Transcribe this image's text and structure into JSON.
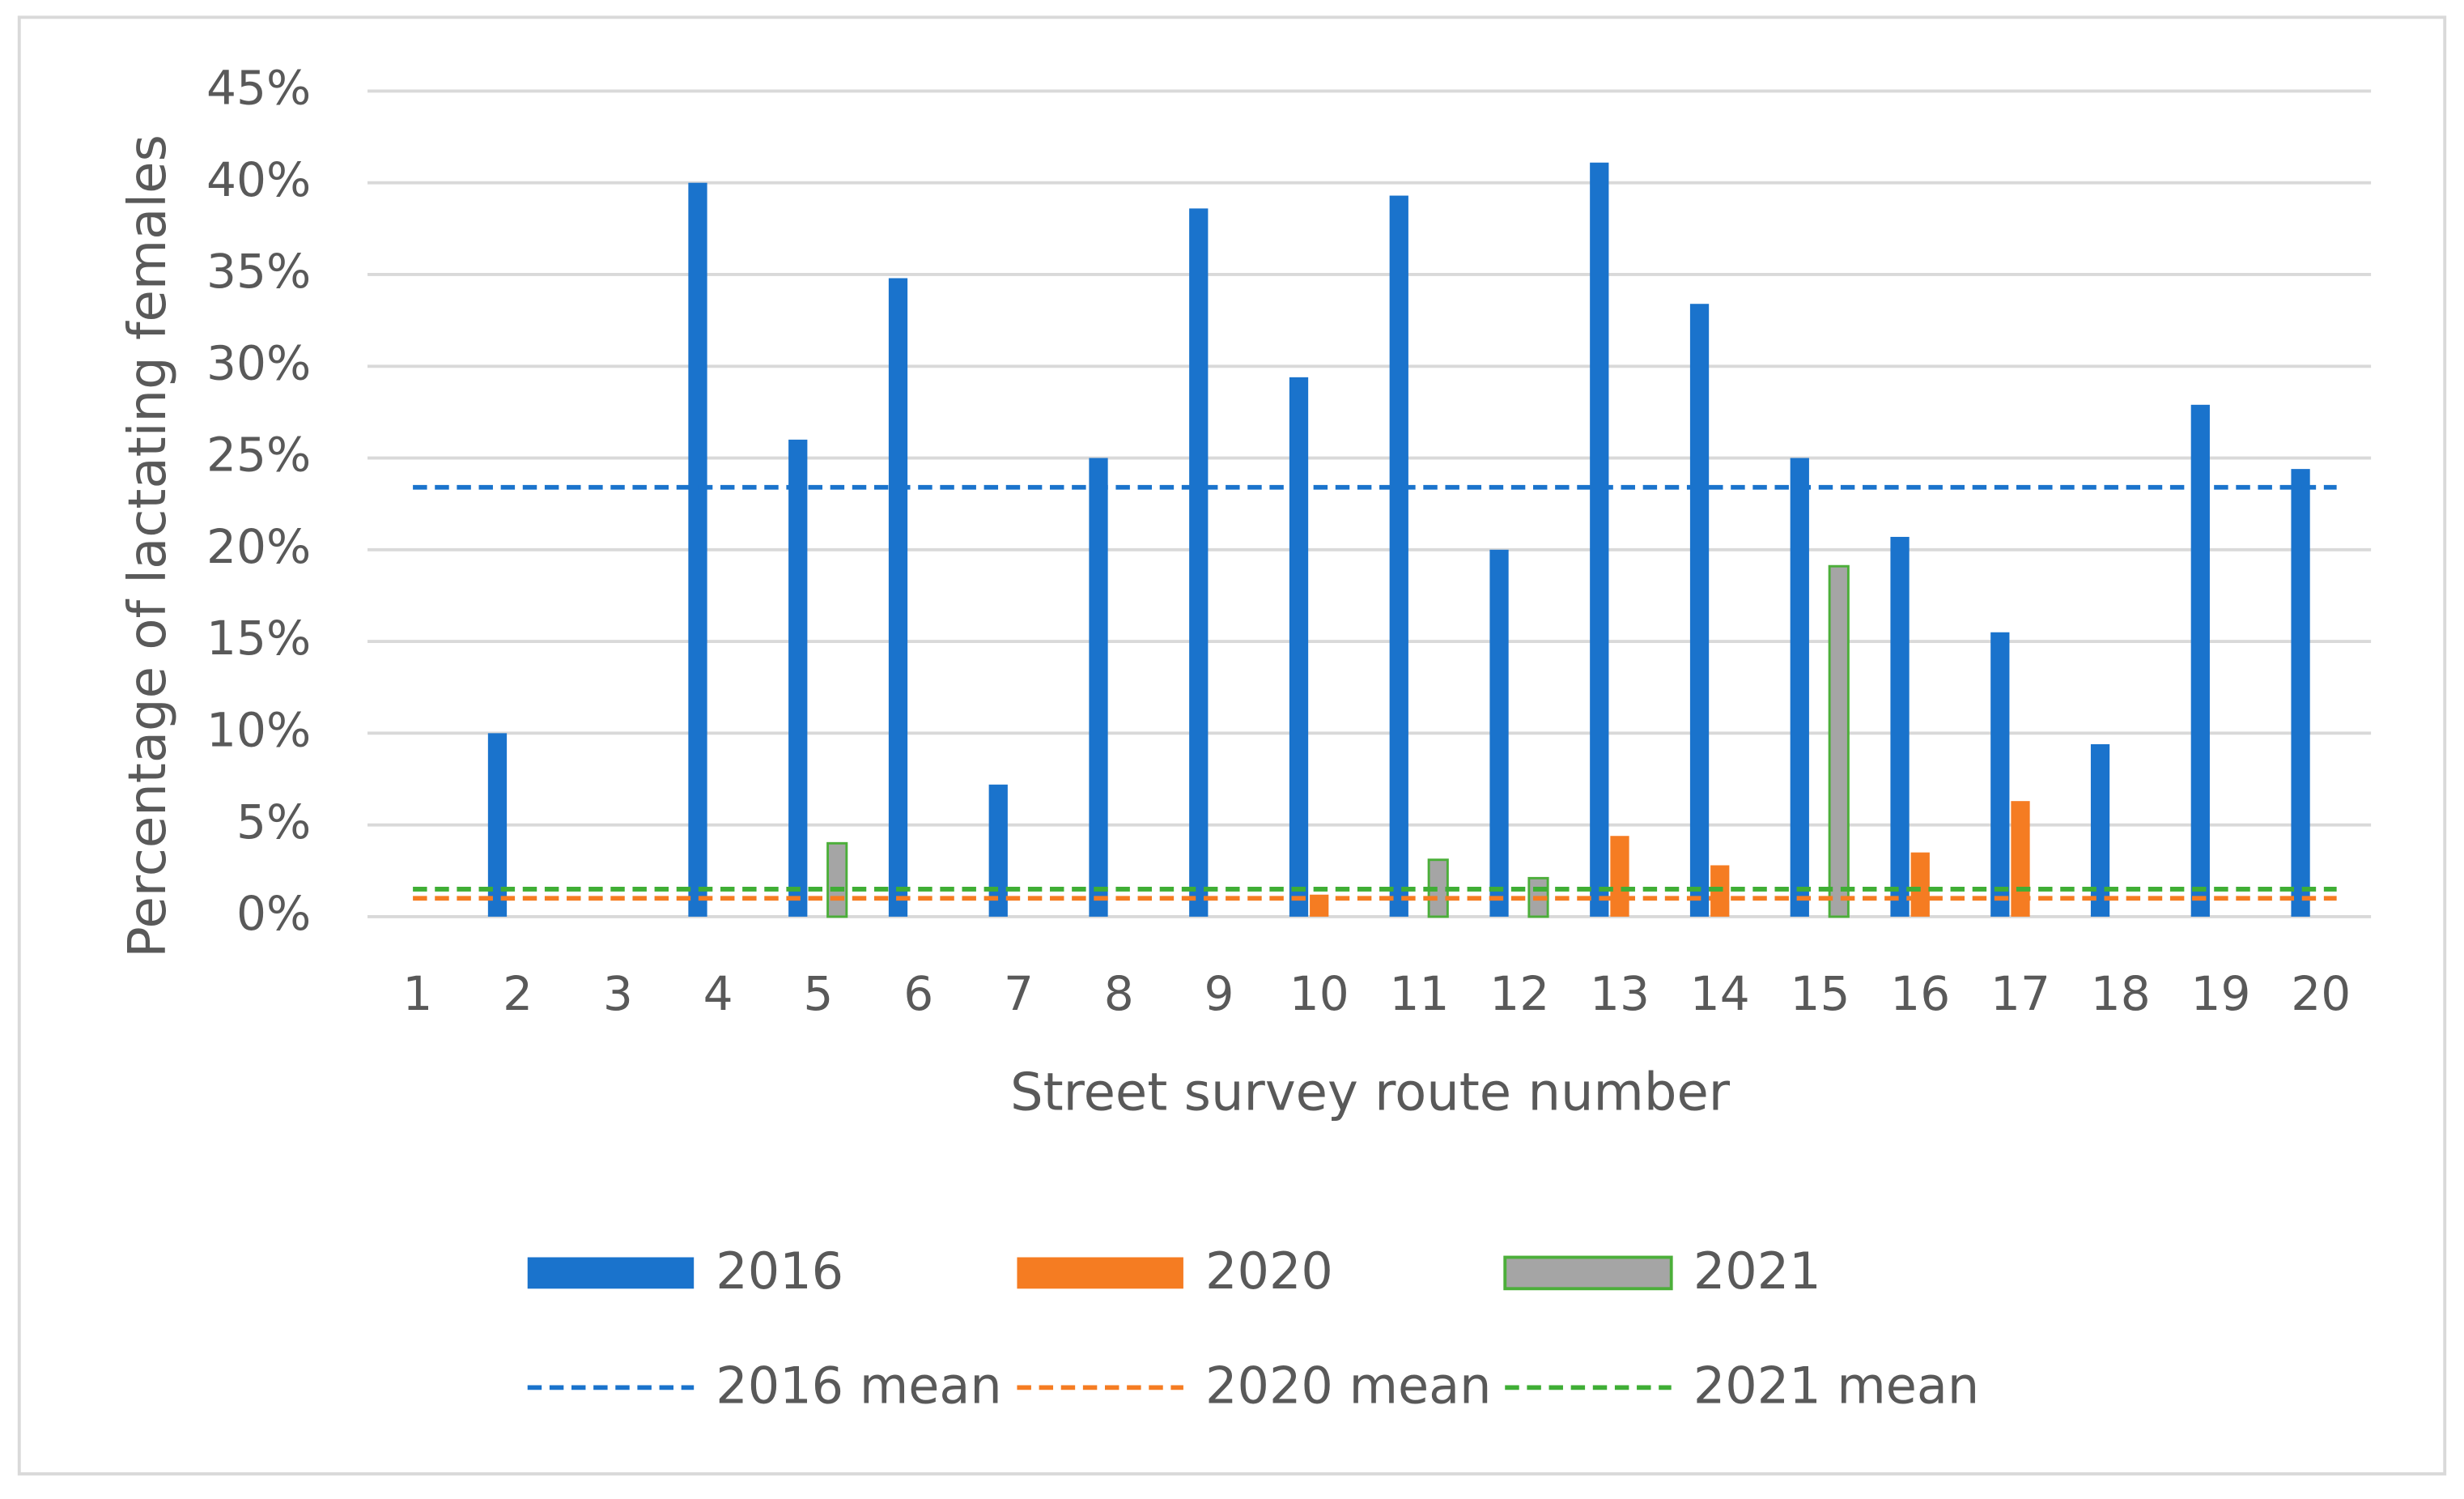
{
  "chart_data": {
    "type": "bar",
    "x_label": "Street survey route number",
    "y_label": "Percentage of lactating females",
    "categories": [
      "1",
      "2",
      "3",
      "4",
      "5",
      "6",
      "7",
      "8",
      "9",
      "10",
      "11",
      "12",
      "13",
      "14",
      "15",
      "16",
      "17",
      "18",
      "19",
      "20"
    ],
    "series": [
      {
        "name": "2016",
        "color": "#1a73cc",
        "values": [
          0,
          10,
          0,
          40,
          26,
          34.8,
          7.2,
          25,
          38.6,
          29.4,
          39.3,
          20,
          41.1,
          33.4,
          25,
          20.7,
          15.5,
          9.4,
          27.9,
          24.4
        ]
      },
      {
        "name": "2020",
        "color": "#f57c22",
        "values": [
          0,
          0,
          0,
          0,
          0,
          0,
          0,
          0,
          0,
          1.2,
          0,
          0,
          4.4,
          2.8,
          0,
          3.5,
          6.3,
          0,
          0,
          0
        ]
      },
      {
        "name": "2021",
        "color": "#a5a5a5",
        "edgecolor": "#4caf3a",
        "values": [
          0,
          0,
          0,
          0,
          4,
          0,
          0,
          0,
          0,
          0,
          3.1,
          2.1,
          0,
          0,
          19.1,
          0,
          0,
          0,
          0,
          0
        ]
      }
    ],
    "means": [
      {
        "name": "2016 mean",
        "color": "#1a73cc",
        "value": 23.4
      },
      {
        "name": "2020 mean",
        "color": "#f57c22",
        "value": 1.0
      },
      {
        "name": "2021 mean",
        "color": "#3fae35",
        "value": 1.5
      }
    ],
    "ylim": [
      0,
      45
    ],
    "yticks": [
      {
        "value": 0,
        "label": "0%"
      },
      {
        "value": 5,
        "label": "5%"
      },
      {
        "value": 10,
        "label": "10%"
      },
      {
        "value": 15,
        "label": "15%"
      },
      {
        "value": 20,
        "label": "20%"
      },
      {
        "value": 25,
        "label": "25%"
      },
      {
        "value": 30,
        "label": "30%"
      },
      {
        "value": 35,
        "label": "35%"
      },
      {
        "value": 40,
        "label": "40%"
      },
      {
        "value": 45,
        "label": "45%"
      }
    ],
    "grid": true
  }
}
